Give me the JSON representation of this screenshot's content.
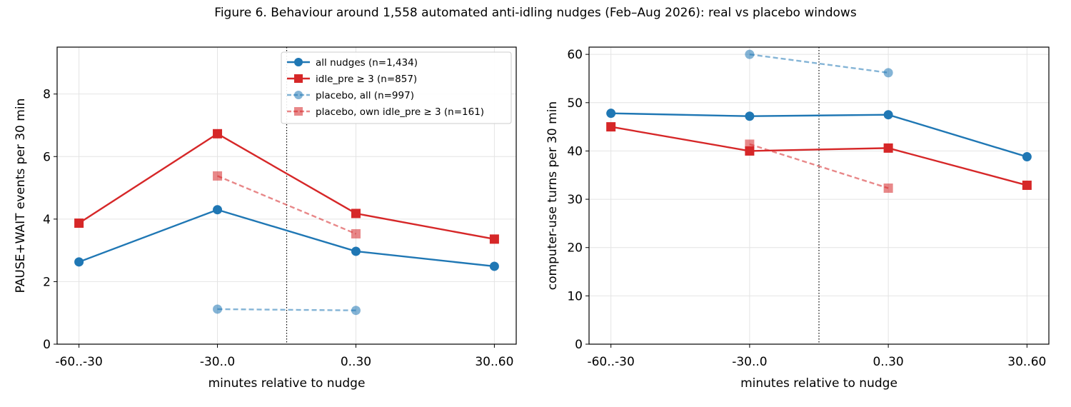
{
  "figure": {
    "title": "Figure 6. Behaviour around 1,558 automated anti-idling nudges (Feb–Aug 2026): real vs placebo windows"
  },
  "colors": {
    "blue": "#1f77b4",
    "red": "#d62728"
  },
  "chart_data": [
    {
      "type": "line",
      "categories": [
        "-60..-30",
        "-30..0",
        "0..30",
        "30..60"
      ],
      "xlabel": "minutes relative to nudge",
      "ylabel": "PAUSE+WAIT events per 30 min",
      "ylim": [
        0,
        9.5
      ],
      "yticks": [
        0,
        2,
        4,
        6,
        8
      ],
      "nudge_marker_at": "between -30..0 and 0..30",
      "grid": true,
      "legend_position": "upper-right",
      "series": [
        {
          "name": "all nudges (n=1,434)",
          "color": "#1f77b4",
          "marker": "circle",
          "style": "solid",
          "values": [
            2.63,
            4.3,
            2.97,
            2.49
          ]
        },
        {
          "name": "idle_pre ≥ 3 (n=857)",
          "color": "#d62728",
          "marker": "square",
          "style": "solid",
          "values": [
            3.87,
            6.73,
            4.18,
            3.36
          ]
        },
        {
          "name": "placebo, all (n=997)",
          "color": "#1f77b4",
          "marker": "circle",
          "style": "dashed",
          "values": [
            null,
            1.12,
            1.08,
            null
          ]
        },
        {
          "name": "placebo, own idle_pre ≥ 3 (n=161)",
          "color": "#d62728",
          "marker": "square",
          "style": "dashed",
          "values": [
            null,
            5.38,
            3.53,
            null
          ]
        }
      ]
    },
    {
      "type": "line",
      "categories": [
        "-60..-30",
        "-30..0",
        "0..30",
        "30..60"
      ],
      "xlabel": "minutes relative to nudge",
      "ylabel": "computer-use turns per 30 min",
      "ylim": [
        0,
        61.5
      ],
      "yticks": [
        0,
        10,
        20,
        30,
        40,
        50,
        60
      ],
      "nudge_marker_at": "between -30..0 and 0..30",
      "grid": true,
      "series": [
        {
          "color": "#1f77b4",
          "marker": "circle",
          "style": "solid",
          "values": [
            47.8,
            47.2,
            47.5,
            38.8
          ]
        },
        {
          "color": "#d62728",
          "marker": "square",
          "style": "solid",
          "values": [
            45.0,
            40.0,
            40.6,
            32.9
          ]
        },
        {
          "color": "#1f77b4",
          "marker": "circle",
          "style": "dashed",
          "values": [
            null,
            60.0,
            56.2,
            null
          ]
        },
        {
          "color": "#d62728",
          "marker": "square",
          "style": "dashed",
          "values": [
            null,
            41.4,
            32.3,
            null
          ]
        }
      ]
    }
  ]
}
